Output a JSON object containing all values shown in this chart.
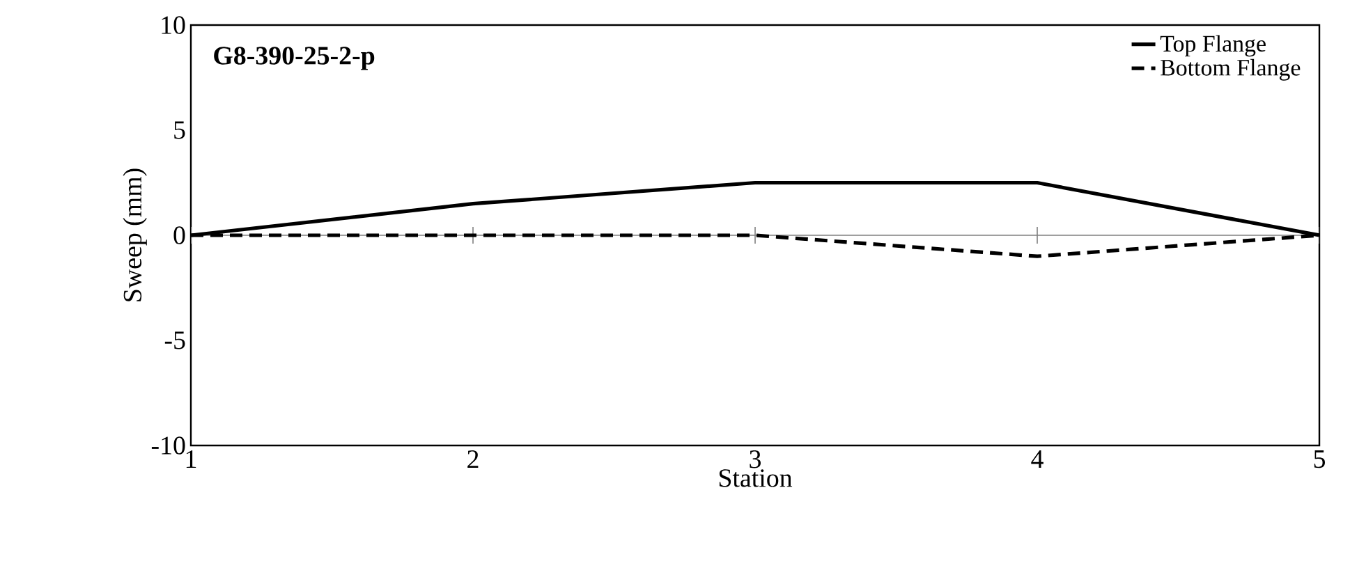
{
  "chart_data": {
    "type": "line",
    "xlabel": "Station",
    "ylabel": "Sweep (mm)",
    "annotations": [
      "G8-390-25-2-p"
    ],
    "x": [
      1,
      2,
      3,
      4,
      5
    ],
    "series": [
      {
        "name": "Top Flange",
        "color": "#000000",
        "line_style": "solid",
        "values": [
          0,
          1.5,
          2.5,
          2.5,
          0
        ]
      },
      {
        "name": "Bottom Flange",
        "color": "#000000",
        "line_style": "dashed",
        "values": [
          0,
          0,
          0,
          -1,
          0
        ]
      }
    ],
    "xlim": [
      1,
      5
    ],
    "xticks": [
      1,
      2,
      3,
      4,
      5
    ],
    "ylim": [
      -10,
      10
    ],
    "yticks": [
      -10,
      -5,
      0,
      5,
      10
    ],
    "ref_lines": [
      {
        "axis": "y",
        "value": 0,
        "color": "#808080"
      }
    ],
    "grid": false,
    "legend": "top right",
    "marker": "none"
  }
}
